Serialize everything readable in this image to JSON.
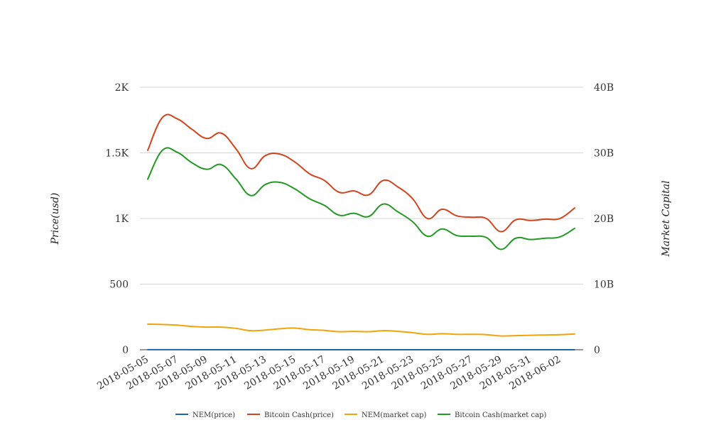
{
  "chart_data": {
    "type": "line",
    "title": "",
    "ylabel_left": "Price(usd)",
    "ylabel_right": "Market Capital",
    "ylim_left": [
      0,
      2000
    ],
    "ylim_right": [
      0,
      40000000000
    ],
    "yticks_left": [
      {
        "value": 0,
        "label": "0"
      },
      {
        "value": 500,
        "label": "500"
      },
      {
        "value": 1000,
        "label": "1K"
      },
      {
        "value": 1500,
        "label": "1.5K"
      },
      {
        "value": 2000,
        "label": "2K"
      }
    ],
    "yticks_right": [
      {
        "value": 0,
        "label": "0"
      },
      {
        "value": 10000000000,
        "label": "10B"
      },
      {
        "value": 20000000000,
        "label": "20B"
      },
      {
        "value": 30000000000,
        "label": "30B"
      },
      {
        "value": 40000000000,
        "label": "40B"
      }
    ],
    "x": [
      "2018-05-05",
      "2018-05-06",
      "2018-05-07",
      "2018-05-08",
      "2018-05-09",
      "2018-05-10",
      "2018-05-11",
      "2018-05-12",
      "2018-05-13",
      "2018-05-14",
      "2018-05-15",
      "2018-05-16",
      "2018-05-17",
      "2018-05-18",
      "2018-05-19",
      "2018-05-20",
      "2018-05-21",
      "2018-05-22",
      "2018-05-23",
      "2018-05-24",
      "2018-05-25",
      "2018-05-26",
      "2018-05-27",
      "2018-05-28",
      "2018-05-29",
      "2018-05-30",
      "2018-05-31",
      "2018-06-01",
      "2018-06-02",
      "2018-06-03"
    ],
    "xtick_labels": [
      "2018-05-05",
      "2018-05-07",
      "2018-05-09",
      "2018-05-11",
      "2018-05-13",
      "2018-05-15",
      "2018-05-17",
      "2018-05-19",
      "2018-05-21",
      "2018-05-23",
      "2018-05-25",
      "2018-05-27",
      "2018-05-29",
      "2018-05-31",
      "2018-06-02"
    ],
    "grid": true,
    "legend_position": "bottom",
    "series": [
      {
        "name": "NEM(price)",
        "axis": "left",
        "color": "#2166ac",
        "values": [
          0.39,
          0.38,
          0.37,
          0.35,
          0.34,
          0.34,
          0.32,
          0.29,
          0.3,
          0.31,
          0.32,
          0.3,
          0.29,
          0.27,
          0.28,
          0.27,
          0.28,
          0.27,
          0.25,
          0.23,
          0.24,
          0.23,
          0.23,
          0.23,
          0.21,
          0.22,
          0.22,
          0.22,
          0.23,
          0.24
        ]
      },
      {
        "name": "Bitcoin Cash(price)",
        "axis": "left",
        "color": "#d2441e",
        "values": [
          1520,
          1770,
          1760,
          1680,
          1610,
          1650,
          1530,
          1380,
          1480,
          1490,
          1430,
          1340,
          1290,
          1200,
          1210,
          1180,
          1290,
          1240,
          1150,
          1000,
          1070,
          1020,
          1010,
          1000,
          900,
          990,
          985,
          995,
          1000,
          1080
        ]
      },
      {
        "name": "NEM(market cap)",
        "axis": "right",
        "color": "#f0a30a",
        "values": [
          3900000000,
          3850000000,
          3750000000,
          3550000000,
          3450000000,
          3450000000,
          3250000000,
          2900000000,
          3000000000,
          3200000000,
          3300000000,
          3050000000,
          2950000000,
          2750000000,
          2800000000,
          2750000000,
          2900000000,
          2800000000,
          2600000000,
          2350000000,
          2450000000,
          2350000000,
          2350000000,
          2300000000,
          2100000000,
          2150000000,
          2200000000,
          2250000000,
          2300000000,
          2400000000
        ]
      },
      {
        "name": "Bitcoin Cash(market cap)",
        "axis": "right",
        "color": "#229922",
        "values": [
          26000000000,
          30400000000,
          30100000000,
          28500000000,
          27500000000,
          28200000000,
          26000000000,
          23500000000,
          25200000000,
          25500000000,
          24500000000,
          23000000000,
          22000000000,
          20500000000,
          20800000000,
          20300000000,
          22200000000,
          21000000000,
          19500000000,
          17300000000,
          18400000000,
          17400000000,
          17300000000,
          17100000000,
          15300000000,
          17000000000,
          16800000000,
          17000000000,
          17200000000,
          18500000000
        ]
      }
    ]
  }
}
